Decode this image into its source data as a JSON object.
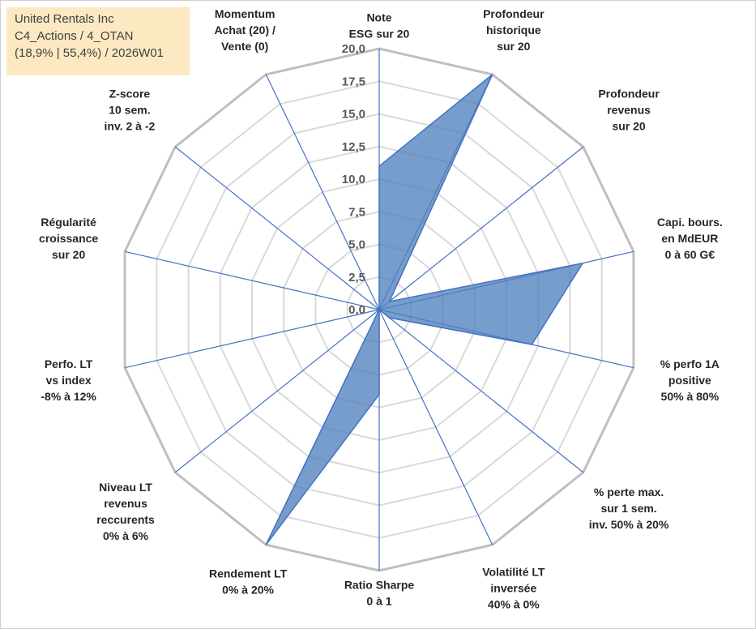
{
  "info": {
    "company": "United Rentals Inc",
    "portfolio": "C4_Actions / 4_OTAN",
    "stats": "(18,9% | 55,4%) / 2026W01"
  },
  "chart_data": {
    "type": "radar",
    "title": "United Rentals Inc",
    "rlim": [
      0,
      20
    ],
    "ticks": [
      "0,0",
      "2,5",
      "5,0",
      "7,5",
      "10,0",
      "12,5",
      "15,0",
      "17,5",
      "20,0"
    ],
    "tick_values": [
      0,
      2.5,
      5,
      7.5,
      10,
      12.5,
      15,
      17.5,
      20
    ],
    "axes": [
      {
        "label": [
          "Note",
          "ESG sur 20"
        ],
        "value": 11
      },
      {
        "label": [
          "Profondeur",
          "historique",
          "sur 20"
        ],
        "value": 20
      },
      {
        "label": [
          "Profondeur",
          "revenus",
          "sur 20"
        ],
        "value": 1
      },
      {
        "label": [
          "Capi. bours.",
          "en MdEUR",
          "0 à 60 G€"
        ],
        "value": 16
      },
      {
        "label": [
          "% perfo 1A",
          "positive",
          "50% à 80%"
        ],
        "value": 12
      },
      {
        "label": [
          "% perte max.",
          "sur 1 sem.",
          "inv. 50% à 20%"
        ],
        "value": 1
      },
      {
        "label": [
          "Volatilité LT",
          "inversée",
          "40% à 0%"
        ],
        "value": 0
      },
      {
        "label": [
          "Ratio Sharpe",
          "0 à 1"
        ],
        "value": 6.5
      },
      {
        "label": [
          "Rendement LT",
          "0% à 20%"
        ],
        "value": 20
      },
      {
        "label": [
          "Niveau LT",
          "revenus",
          "reccurents",
          "0% à 6%"
        ],
        "value": 0
      },
      {
        "label": [
          "Perfo. LT",
          "vs index",
          "-8% à 12%"
        ],
        "value": 0
      },
      {
        "label": [
          "Régularité",
          "croissance",
          "sur 20"
        ],
        "value": 0
      },
      {
        "label": [
          "Z-score",
          "10 sem.",
          "inv. 2 à -2"
        ],
        "value": 0
      },
      {
        "label": [
          "Momentum",
          "Achat (20) /",
          "Vente (0)"
        ],
        "value": 0
      }
    ],
    "colors": {
      "fill": "#4f81bd",
      "outline": "#4472c4",
      "spoke": "#4472c4",
      "outer_ring": "#bfbfbf",
      "inner_ring": "#d9d9d9"
    }
  }
}
